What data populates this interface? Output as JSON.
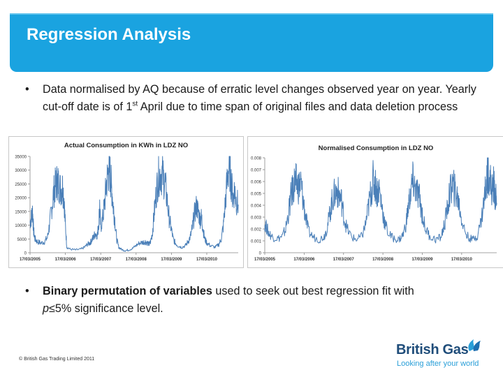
{
  "slide": {
    "title": "Regression Analysis",
    "bullet1": {
      "symbol": "•",
      "text_before_sup": "Data normalised by AQ because of erratic level changes observed year on year. Yearly cut-off date is of 1",
      "superscript": "st",
      "text_after_sup": " April due to time span of original files and data deletion process"
    },
    "bullet2": {
      "symbol": "•",
      "bold": "Binary permutation of variables",
      "rest_line1": " used to seek out best regression fit with",
      "italic_p": "p",
      "rest_line2": "≤5% significance level."
    },
    "footer": "© British Gas Trading Limited 2011",
    "logo": {
      "name": "British Gas",
      "tagline": "Looking after your world",
      "color_primary": "#1f4d7a",
      "color_accent": "#2a9fd8"
    }
  },
  "chart_data": [
    {
      "type": "line",
      "title": "Actual Consumption in KWh in LDZ NO",
      "x_tick_labels": [
        "17/03/2005",
        "17/03/2006",
        "17/03/2007",
        "17/03/2008",
        "17/03/2009",
        "17/03/2010"
      ],
      "y_tick_labels": [
        "0",
        "5000",
        "10000",
        "15000",
        "20000",
        "25000",
        "30000",
        "35000"
      ],
      "ylim": [
        0,
        35000
      ],
      "y_ticks": [
        0,
        5000,
        10000,
        15000,
        20000,
        25000,
        30000,
        35000
      ],
      "x_range_years": [
        2005.21,
        2011.1
      ],
      "line_color": "#4a7fb8",
      "grid": false,
      "series": [
        {
          "points": [
            [
              2005.21,
              11000
            ],
            [
              2005.25,
              13000
            ],
            [
              2005.28,
              15500
            ],
            [
              2005.31,
              8000
            ],
            [
              2005.35,
              5000
            ],
            [
              2005.42,
              4000
            ],
            [
              2005.52,
              3500
            ],
            [
              2005.62,
              4000
            ],
            [
              2005.7,
              5500
            ],
            [
              2005.76,
              10000
            ],
            [
              2005.82,
              16000
            ],
            [
              2005.88,
              22000
            ],
            [
              2005.93,
              24500
            ],
            [
              2005.98,
              26000
            ],
            [
              2006.02,
              25000
            ],
            [
              2006.08,
              23000
            ],
            [
              2006.13,
              24000
            ],
            [
              2006.17,
              20000
            ],
            [
              2006.21,
              10000
            ],
            [
              2006.25,
              2000
            ],
            [
              2006.35,
              1300
            ],
            [
              2006.5,
              1000
            ],
            [
              2006.65,
              1300
            ],
            [
              2006.75,
              2000
            ],
            [
              2006.83,
              3000
            ],
            [
              2006.9,
              3500
            ],
            [
              2006.95,
              4500
            ],
            [
              2007.0,
              5500
            ],
            [
              2007.06,
              7000
            ],
            [
              2007.12,
              6500
            ],
            [
              2007.16,
              12000
            ],
            [
              2007.18,
              17000
            ],
            [
              2007.21,
              9000
            ],
            [
              2007.27,
              13000
            ],
            [
              2007.32,
              18000
            ],
            [
              2007.37,
              25000
            ],
            [
              2007.42,
              29000
            ],
            [
              2007.46,
              30000
            ],
            [
              2007.49,
              27000
            ],
            [
              2007.53,
              22000
            ],
            [
              2007.57,
              16000
            ],
            [
              2007.61,
              12000
            ],
            [
              2007.66,
              5000
            ],
            [
              2007.72,
              2000
            ],
            [
              2007.8,
              1200
            ],
            [
              2007.9,
              800
            ],
            [
              2008.0,
              1000
            ],
            [
              2008.1,
              1500
            ],
            [
              2008.2,
              2500
            ],
            [
              2008.3,
              3500
            ],
            [
              2008.4,
              3800
            ],
            [
              2008.47,
              4000
            ],
            [
              2008.53,
              3600
            ],
            [
              2008.58,
              3000
            ],
            [
              2008.62,
              4000
            ],
            [
              2008.67,
              7000
            ],
            [
              2008.72,
              14000
            ],
            [
              2008.78,
              22000
            ],
            [
              2008.84,
              27500
            ],
            [
              2008.9,
              29000
            ],
            [
              2008.96,
              28000
            ],
            [
              2009.02,
              26000
            ],
            [
              2009.08,
              20000
            ],
            [
              2009.14,
              13000
            ],
            [
              2009.2,
              9000
            ],
            [
              2009.26,
              5000
            ],
            [
              2009.32,
              3500
            ],
            [
              2009.4,
              2500
            ],
            [
              2009.5,
              2000
            ],
            [
              2009.6,
              2500
            ],
            [
              2009.68,
              4000
            ],
            [
              2009.75,
              6000
            ],
            [
              2009.8,
              9000
            ],
            [
              2009.86,
              14000
            ],
            [
              2009.92,
              17000
            ],
            [
              2009.97,
              15000
            ],
            [
              2010.02,
              12000
            ],
            [
              2010.06,
              13000
            ],
            [
              2010.1,
              9000
            ],
            [
              2010.15,
              5000
            ],
            [
              2010.22,
              3500
            ],
            [
              2010.32,
              2500
            ],
            [
              2010.45,
              2000
            ],
            [
              2010.55,
              3000
            ],
            [
              2010.62,
              5000
            ],
            [
              2010.68,
              10000
            ],
            [
              2010.74,
              19000
            ],
            [
              2010.8,
              28000
            ],
            [
              2010.85,
              31500
            ],
            [
              2010.9,
              26000
            ],
            [
              2010.95,
              20000
            ],
            [
              2011.0,
              23000
            ],
            [
              2011.04,
              19000
            ],
            [
              2011.1,
              17500
            ]
          ]
        }
      ]
    },
    {
      "type": "line",
      "title": "Normalised Consumption in LDZ NO",
      "x_tick_labels": [
        "17/03/2005",
        "17/03/2006",
        "17/03/2007",
        "17/03/2008",
        "17/03/2009",
        "17/03/2010"
      ],
      "y_tick_labels": [
        "0",
        "0.001",
        "0.002",
        "0.003",
        "0.004",
        "0.005",
        "0.006",
        "0.007",
        "0.008"
      ],
      "ylim": [
        0,
        0.008
      ],
      "y_ticks": [
        0,
        0.001,
        0.002,
        0.003,
        0.004,
        0.005,
        0.006,
        0.007,
        0.008
      ],
      "x_range_years": [
        2005.21,
        2011.1
      ],
      "line_color": "#4a7fb8",
      "grid": false,
      "series": [
        {
          "points": [
            [
              2005.21,
              0.0025
            ],
            [
              2005.26,
              0.0021
            ],
            [
              2005.32,
              0.0016
            ],
            [
              2005.42,
              0.0013
            ],
            [
              2005.55,
              0.0012
            ],
            [
              2005.66,
              0.0014
            ],
            [
              2005.74,
              0.002
            ],
            [
              2005.82,
              0.0035
            ],
            [
              2005.88,
              0.0048
            ],
            [
              2005.93,
              0.0055
            ],
            [
              2005.98,
              0.006
            ],
            [
              2006.02,
              0.0058
            ],
            [
              2006.08,
              0.0056
            ],
            [
              2006.13,
              0.0058
            ],
            [
              2006.18,
              0.0045
            ],
            [
              2006.24,
              0.0032
            ],
            [
              2006.32,
              0.0018
            ],
            [
              2006.45,
              0.0013
            ],
            [
              2006.6,
              0.0011
            ],
            [
              2006.72,
              0.0014
            ],
            [
              2006.8,
              0.0022
            ],
            [
              2006.87,
              0.0035
            ],
            [
              2006.93,
              0.0045
            ],
            [
              2006.99,
              0.005
            ],
            [
              2007.05,
              0.0052
            ],
            [
              2007.1,
              0.0048
            ],
            [
              2007.16,
              0.0044
            ],
            [
              2007.22,
              0.003
            ],
            [
              2007.3,
              0.002
            ],
            [
              2007.42,
              0.0013
            ],
            [
              2007.55,
              0.0011
            ],
            [
              2007.68,
              0.0014
            ],
            [
              2007.77,
              0.0024
            ],
            [
              2007.84,
              0.0038
            ],
            [
              2007.9,
              0.005
            ],
            [
              2007.96,
              0.0061
            ],
            [
              2008.01,
              0.0058
            ],
            [
              2008.06,
              0.0052
            ],
            [
              2008.12,
              0.0053
            ],
            [
              2008.18,
              0.004
            ],
            [
              2008.25,
              0.0026
            ],
            [
              2008.35,
              0.0016
            ],
            [
              2008.48,
              0.0012
            ],
            [
              2008.62,
              0.0011
            ],
            [
              2008.72,
              0.0015
            ],
            [
              2008.8,
              0.0025
            ],
            [
              2008.86,
              0.004
            ],
            [
              2008.92,
              0.0052
            ],
            [
              2008.97,
              0.006
            ],
            [
              2009.02,
              0.0055
            ],
            [
              2009.08,
              0.005
            ],
            [
              2009.14,
              0.0046
            ],
            [
              2009.2,
              0.0034
            ],
            [
              2009.28,
              0.0021
            ],
            [
              2009.4,
              0.0014
            ],
            [
              2009.55,
              0.0011
            ],
            [
              2009.68,
              0.0013
            ],
            [
              2009.77,
              0.0023
            ],
            [
              2009.84,
              0.0036
            ],
            [
              2009.9,
              0.0048
            ],
            [
              2009.96,
              0.0057
            ],
            [
              2010.01,
              0.0055
            ],
            [
              2010.06,
              0.005
            ],
            [
              2010.12,
              0.0045
            ],
            [
              2010.18,
              0.0034
            ],
            [
              2010.25,
              0.0022
            ],
            [
              2010.35,
              0.0014
            ],
            [
              2010.48,
              0.0011
            ],
            [
              2010.6,
              0.0014
            ],
            [
              2010.7,
              0.0026
            ],
            [
              2010.77,
              0.0042
            ],
            [
              2010.83,
              0.0058
            ],
            [
              2010.88,
              0.007
            ],
            [
              2010.93,
              0.0062
            ],
            [
              2010.98,
              0.0052
            ],
            [
              2011.02,
              0.0058
            ],
            [
              2011.06,
              0.0049
            ],
            [
              2011.1,
              0.0042
            ]
          ]
        }
      ]
    }
  ]
}
